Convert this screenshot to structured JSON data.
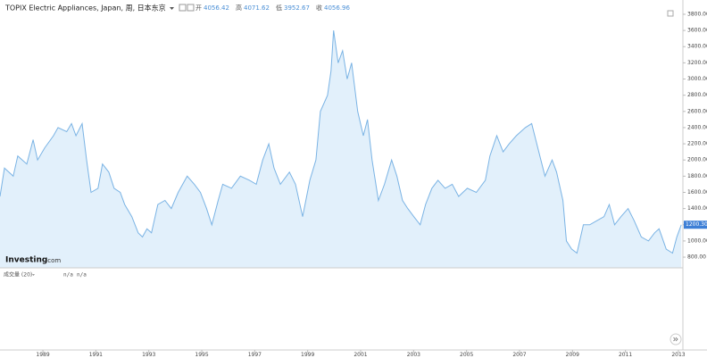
{
  "chart_data": {
    "type": "area",
    "title": "TOPIX Electric Appliances, Japan, 周, 日本东京",
    "ohlc": [
      {
        "label": "开",
        "value": "4056.42"
      },
      {
        "label": "高",
        "value": "4071.62"
      },
      {
        "label": "低",
        "value": "3952.67"
      },
      {
        "label": "收",
        "value": "4056.96"
      }
    ],
    "logo": {
      "brand": "Investing",
      "suffix": ".com"
    },
    "volume_label": "成交量 (20)",
    "volume_values": [
      "n/a",
      "n/a"
    ],
    "last_price": {
      "value": 1200.3,
      "label": "1200.30"
    },
    "color": "#7ab3e4",
    "fill": "#e2f0fb",
    "x": [
      1987.38,
      1987.55,
      1987.88,
      1988.05,
      1988.39,
      1988.63,
      1988.8,
      1989.07,
      1989.4,
      1989.57,
      1989.9,
      1990.08,
      1990.25,
      1990.48,
      1990.65,
      1990.82,
      1991.08,
      1991.25,
      1991.49,
      1991.69,
      1991.92,
      1992.09,
      1992.36,
      1992.6,
      1992.76,
      1992.93,
      1993.1,
      1993.34,
      1993.61,
      1993.85,
      1994.11,
      1994.45,
      1994.72,
      1994.95,
      1995.18,
      1995.38,
      1995.62,
      1995.79,
      1996.12,
      1996.46,
      1996.8,
      1997.06,
      1997.3,
      1997.53,
      1997.73,
      1997.97,
      1998.31,
      1998.54,
      1998.81,
      1999.08,
      1999.31,
      1999.48,
      1999.75,
      1999.88,
      1999.98,
      2000.15,
      2000.32,
      2000.49,
      2000.66,
      2000.89,
      2001.1,
      2001.26,
      2001.43,
      2001.67,
      2001.9,
      2002.17,
      2002.37,
      2002.58,
      2002.78,
      2003.01,
      2003.25,
      2003.45,
      2003.69,
      2003.92,
      2004.19,
      2004.46,
      2004.7,
      2005.03,
      2005.37,
      2005.71,
      2005.88,
      2006.14,
      2006.38,
      2006.61,
      2006.88,
      2007.22,
      2007.46,
      2007.73,
      2007.96,
      2008.23,
      2008.4,
      2008.64,
      2008.77,
      2008.97,
      2009.17,
      2009.41,
      2009.65,
      2009.92,
      2010.19,
      2010.39,
      2010.59,
      2010.83,
      2011.1,
      2011.33,
      2011.6,
      2011.87,
      2012.1,
      2012.27,
      2012.54,
      2012.78,
      2012.94,
      2013.11
    ],
    "values": [
      1550,
      1900,
      1800,
      2050,
      1950,
      2250,
      2000,
      2150,
      2300,
      2400,
      2350,
      2450,
      2300,
      2450,
      2000,
      1600,
      1650,
      1950,
      1850,
      1650,
      1600,
      1450,
      1300,
      1100,
      1050,
      1150,
      1100,
      1450,
      1500,
      1400,
      1600,
      1800,
      1700,
      1600,
      1400,
      1200,
      1500,
      1700,
      1650,
      1800,
      1750,
      1700,
      2000,
      2200,
      1900,
      1700,
      1850,
      1700,
      1300,
      1750,
      2000,
      2600,
      2800,
      3100,
      3600,
      3200,
      3350,
      3000,
      3200,
      2600,
      2300,
      2500,
      2000,
      1500,
      1700,
      2000,
      1800,
      1500,
      1400,
      1300,
      1200,
      1450,
      1650,
      1750,
      1650,
      1700,
      1550,
      1650,
      1600,
      1750,
      2050,
      2300,
      2100,
      2200,
      2300,
      2400,
      2450,
      2100,
      1800,
      2000,
      1850,
      1500,
      1000,
      900,
      850,
      1200,
      1200,
      1250,
      1300,
      1450,
      1200,
      1300,
      1400,
      1250,
      1050,
      1000,
      1100,
      1150,
      900,
      850,
      1050,
      1200
    ],
    "xlim": [
      1987.38,
      2013.17
    ],
    "ylim": [
      668,
      3921
    ],
    "xticks": [
      1989,
      1991,
      1993,
      1995,
      1997,
      1999,
      2001,
      2003,
      2005,
      2007,
      2009,
      2011,
      2013
    ],
    "yticks": [
      {
        "value": 800,
        "label": "800.00"
      },
      {
        "value": 1000,
        "label": "1000.00"
      },
      {
        "value": 1200,
        "label": "1200.00"
      },
      {
        "value": 1400,
        "label": "1400.00"
      },
      {
        "value": 1600,
        "label": "1600.00"
      },
      {
        "value": 1800,
        "label": "1800.00"
      },
      {
        "value": 2000,
        "label": "2000.00"
      },
      {
        "value": 2200,
        "label": "2200.00"
      },
      {
        "value": 2400,
        "label": "2400.00"
      },
      {
        "value": 2600,
        "label": "2600.00"
      },
      {
        "value": 2800,
        "label": "2800.00"
      },
      {
        "value": 3000,
        "label": "3000.00"
      },
      {
        "value": 3200,
        "label": "3200.00"
      },
      {
        "value": 3400,
        "label": "3400.00"
      },
      {
        "value": 3600,
        "label": "3600.00"
      },
      {
        "value": 3800,
        "label": "3800.00"
      }
    ]
  }
}
